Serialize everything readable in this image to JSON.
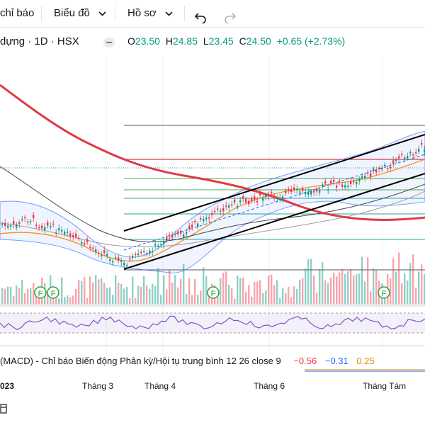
{
  "toolbar": {
    "indicators_label": "chỉ báo",
    "templates_label": "Biểu đồ",
    "profile_label": "Hồ sơ",
    "undo_icon": "undo-icon",
    "redo_icon": "redo-icon"
  },
  "legend": {
    "symbol": "dựng · 1D · HSX",
    "open_key": "O",
    "open": "23.50",
    "high_key": "H",
    "high": "24.85",
    "low_key": "L",
    "low": "23.45",
    "close_key": "C",
    "close": "24.50",
    "change": "+0.65 (+2.73%)"
  },
  "markers": [
    "F",
    "F",
    "F",
    "F"
  ],
  "macd": {
    "label": "(MACD) - Chỉ báo Biến động Phân kỳ/Hội tụ trung bình 12 26 close 9",
    "v1": "−0.56",
    "v2": "−0.31",
    "v3": "0.25"
  },
  "xaxis": {
    "year": "023",
    "m3": "Tháng 3",
    "m4": "Tháng 4",
    "m6": "Tháng 6",
    "m8": "Tháng Tám"
  },
  "colors": {
    "up": "#089981",
    "down": "#f23645",
    "ma_red": "#e03a45",
    "bollinger": "#2962ff",
    "rsi": "#7e57c2"
  }
}
